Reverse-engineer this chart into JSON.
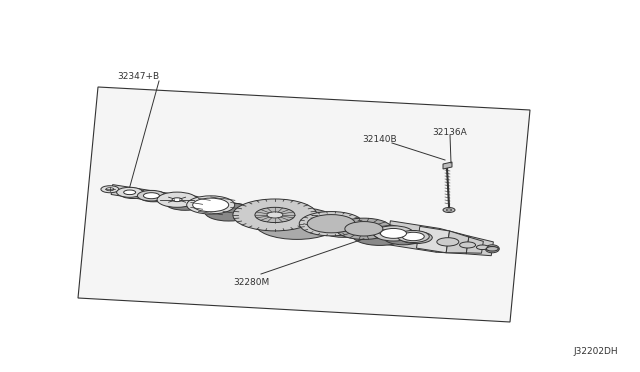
{
  "background_color": "#ffffff",
  "line_color": "#333333",
  "fill_light": "#e8e8e8",
  "fill_mid": "#bbbbbb",
  "fill_dark": "#888888",
  "fill_very_dark": "#555555",
  "labels": {
    "top_left": "32347+B",
    "bottom_center": "32280M",
    "right_top": "32136A",
    "right_mid": "32140B"
  },
  "footnote": "J32202DH",
  "font_size": 6.5
}
